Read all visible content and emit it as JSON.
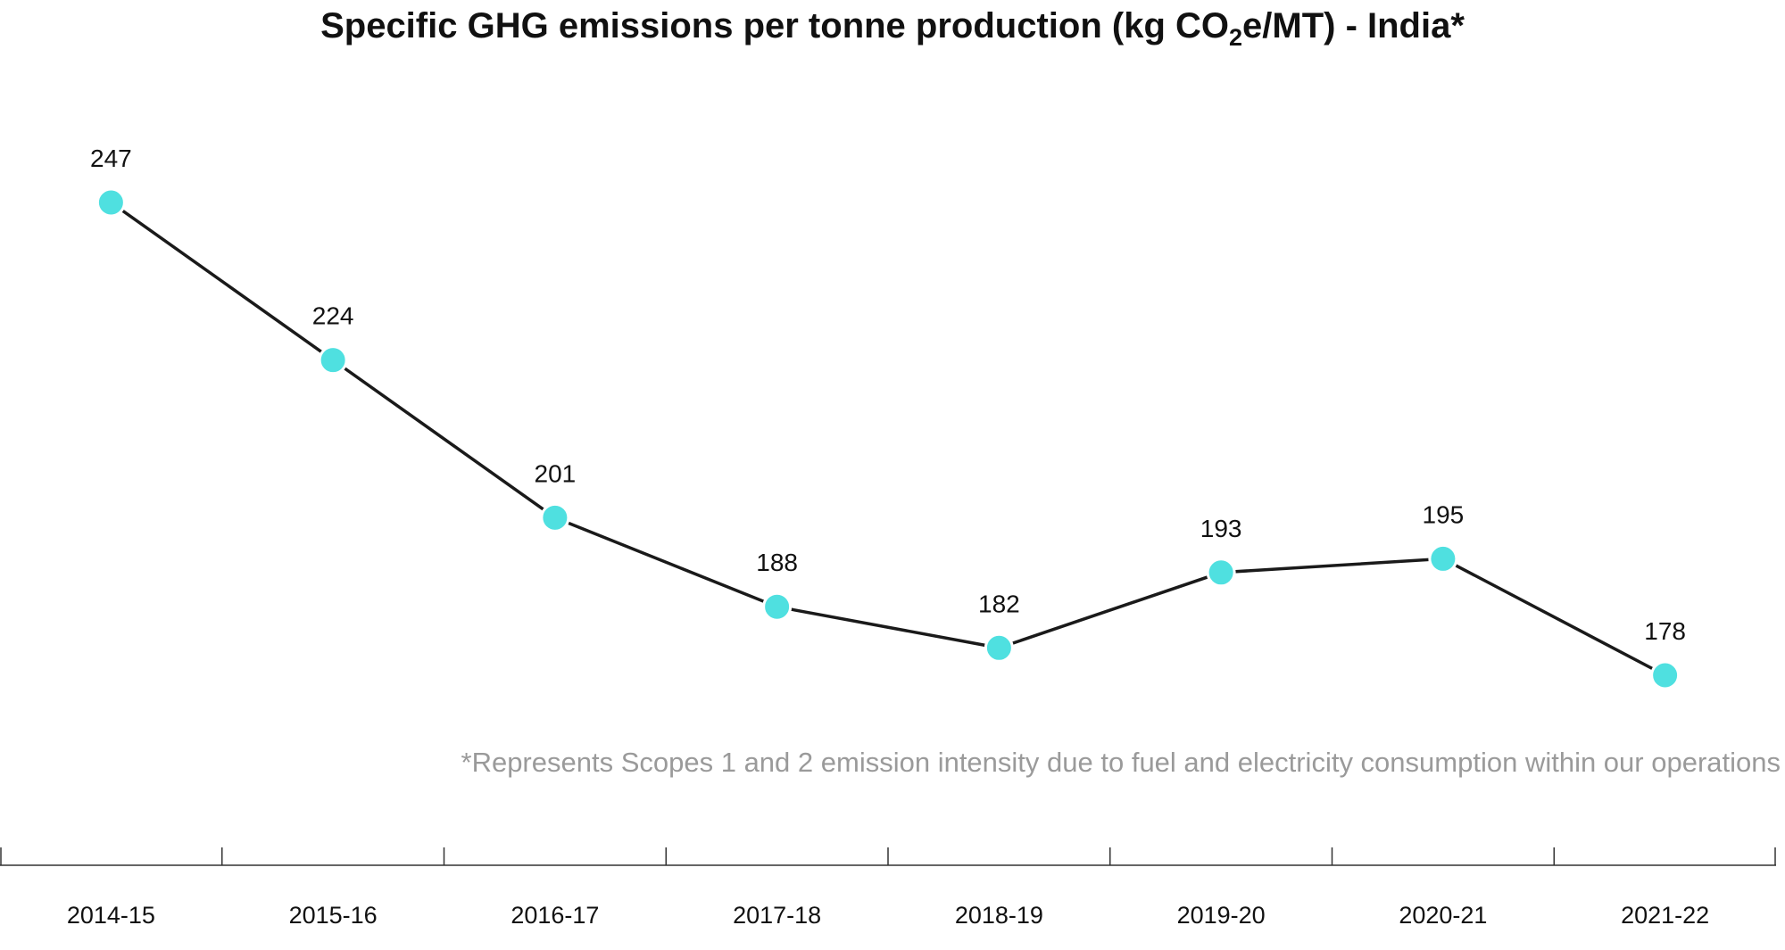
{
  "chart_data": {
    "type": "line",
    "title": "Specific GHG emissions per tonne production (kg CO",
    "title_subscript": "2",
    "title_suffix": "e/MT) - India*",
    "footnote": "*Represents Scopes 1 and 2 emission intensity due to fuel and electricity consumption within our operations",
    "categories": [
      "2014-15",
      "2015-16",
      "2016-17",
      "2017-18",
      "2018-19",
      "2019-20",
      "2020-21",
      "2021-22"
    ],
    "series": [
      {
        "values": [
          247,
          224,
          201,
          188,
          182,
          193,
          195,
          178
        ]
      }
    ],
    "data_labels": [
      "247",
      "224",
      "201",
      "188",
      "182",
      "193",
      "195",
      "178"
    ],
    "grid": false,
    "legend": "none",
    "colors": {
      "marker": "#4fe0e0",
      "line": "#1a1a1a",
      "footnote": "#9a9a9a"
    }
  }
}
